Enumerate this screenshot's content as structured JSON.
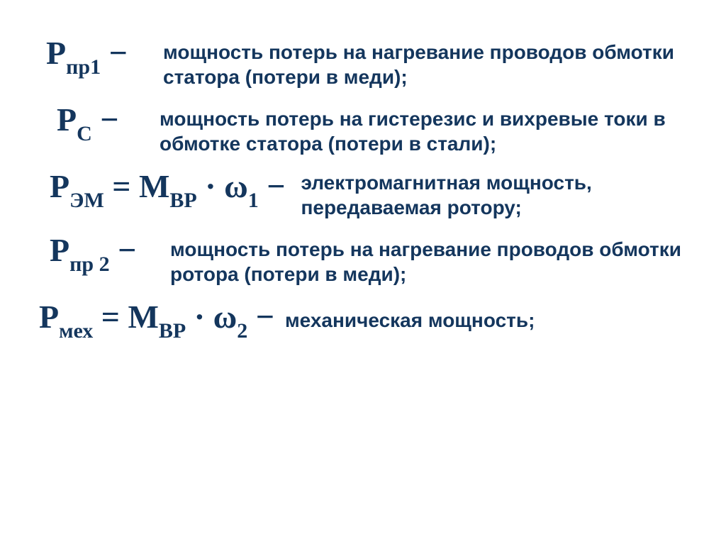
{
  "text_color": "#14365d",
  "background_color": "#ffffff",
  "formula_font": "Times New Roman",
  "desc_font": "Arial",
  "formula_fontsize": 46,
  "desc_fontsize": 28,
  "rows": {
    "r1": {
      "symbol_main": "P",
      "symbol_sub": "пр1",
      "dash": " −",
      "desc": "мощность потерь на нагревание проводов обмотки статора (потери в меди);"
    },
    "r2": {
      "symbol_main": "P",
      "symbol_sub": "С",
      "dash": " −",
      "desc": "мощность потерь на гистерезис и вихревые токи в обмотке статора (потери в стали);"
    },
    "r3": {
      "lhs_main": "P",
      "lhs_sub": "ЭМ",
      "eq": " = ",
      "rhs1_main": "M",
      "rhs1_sub": "ВР",
      "dot": " · ",
      "omega": "ω",
      "omega_sub": "1",
      "dash": " −",
      "desc": "электромагнитная мощность, передаваемая ротору;"
    },
    "r4": {
      "symbol_main": "P",
      "symbol_sub": "пр 2",
      "dash": " −",
      "desc": "мощность потерь на нагревание проводов обмотки ротора (потери в меди);"
    },
    "r5": {
      "lhs_main": "P",
      "lhs_sub": "мех",
      "eq": " = ",
      "rhs1_main": "M",
      "rhs1_sub": "ВР",
      "dot": " · ",
      "omega": "ω",
      "omega_sub": "2",
      "dash": " −",
      "desc": "механическая мощность;"
    }
  }
}
